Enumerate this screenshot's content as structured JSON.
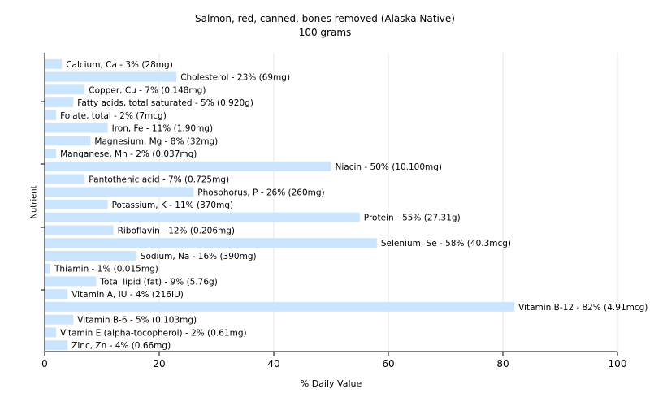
{
  "chart_data": {
    "type": "bar",
    "orientation": "horizontal",
    "title": "Salmon, red, canned, bones removed (Alaska Native)",
    "subtitle": "100 grams",
    "xlabel": "% Daily Value",
    "ylabel": "Nutrient",
    "xlim": [
      0,
      100
    ],
    "xticks": [
      "0",
      "20",
      "40",
      "60",
      "80",
      "100"
    ],
    "grid": "vertical",
    "bar_color": "#cce5ff",
    "categories": [
      "Calcium, Ca",
      "Cholesterol",
      "Copper, Cu",
      "Fatty acids, total saturated",
      "Folate, total",
      "Iron, Fe",
      "Magnesium, Mg",
      "Manganese, Mn",
      "Niacin",
      "Pantothenic acid",
      "Phosphorus, P",
      "Potassium, K",
      "Protein",
      "Riboflavin",
      "Selenium, Se",
      "Sodium, Na",
      "Thiamin",
      "Total lipid (fat)",
      "Vitamin A, IU",
      "Vitamin B-12",
      "Vitamin B-6",
      "Vitamin E (alpha-tocopherol)",
      "Zinc, Zn"
    ],
    "values": [
      3,
      23,
      7,
      5,
      2,
      11,
      8,
      2,
      50,
      7,
      26,
      11,
      55,
      12,
      58,
      16,
      1,
      9,
      4,
      82,
      5,
      2,
      4
    ],
    "labels": [
      "Calcium, Ca - 3% (28mg)",
      "Cholesterol - 23% (69mg)",
      "Copper, Cu - 7% (0.148mg)",
      "Fatty acids, total saturated - 5% (0.920g)",
      "Folate, total - 2% (7mcg)",
      "Iron, Fe - 11% (1.90mg)",
      "Magnesium, Mg - 8% (32mg)",
      "Manganese, Mn - 2% (0.037mg)",
      "Niacin - 50% (10.100mg)",
      "Pantothenic acid - 7% (0.725mg)",
      "Phosphorus, P - 26% (260mg)",
      "Potassium, K - 11% (370mg)",
      "Protein - 55% (27.31g)",
      "Riboflavin - 12% (0.206mg)",
      "Selenium, Se - 58% (40.3mcg)",
      "Sodium, Na - 16% (390mg)",
      "Thiamin - 1% (0.015mg)",
      "Total lipid (fat) - 9% (5.76g)",
      "Vitamin A, IU - 4% (216IU)",
      "Vitamin B-12 - 82% (4.91mcg)",
      "Vitamin B-6 - 5% (0.103mg)",
      "Vitamin E (alpha-tocopherol) - 2% (0.61mg)",
      "Zinc, Zn - 4% (0.66mg)"
    ]
  }
}
